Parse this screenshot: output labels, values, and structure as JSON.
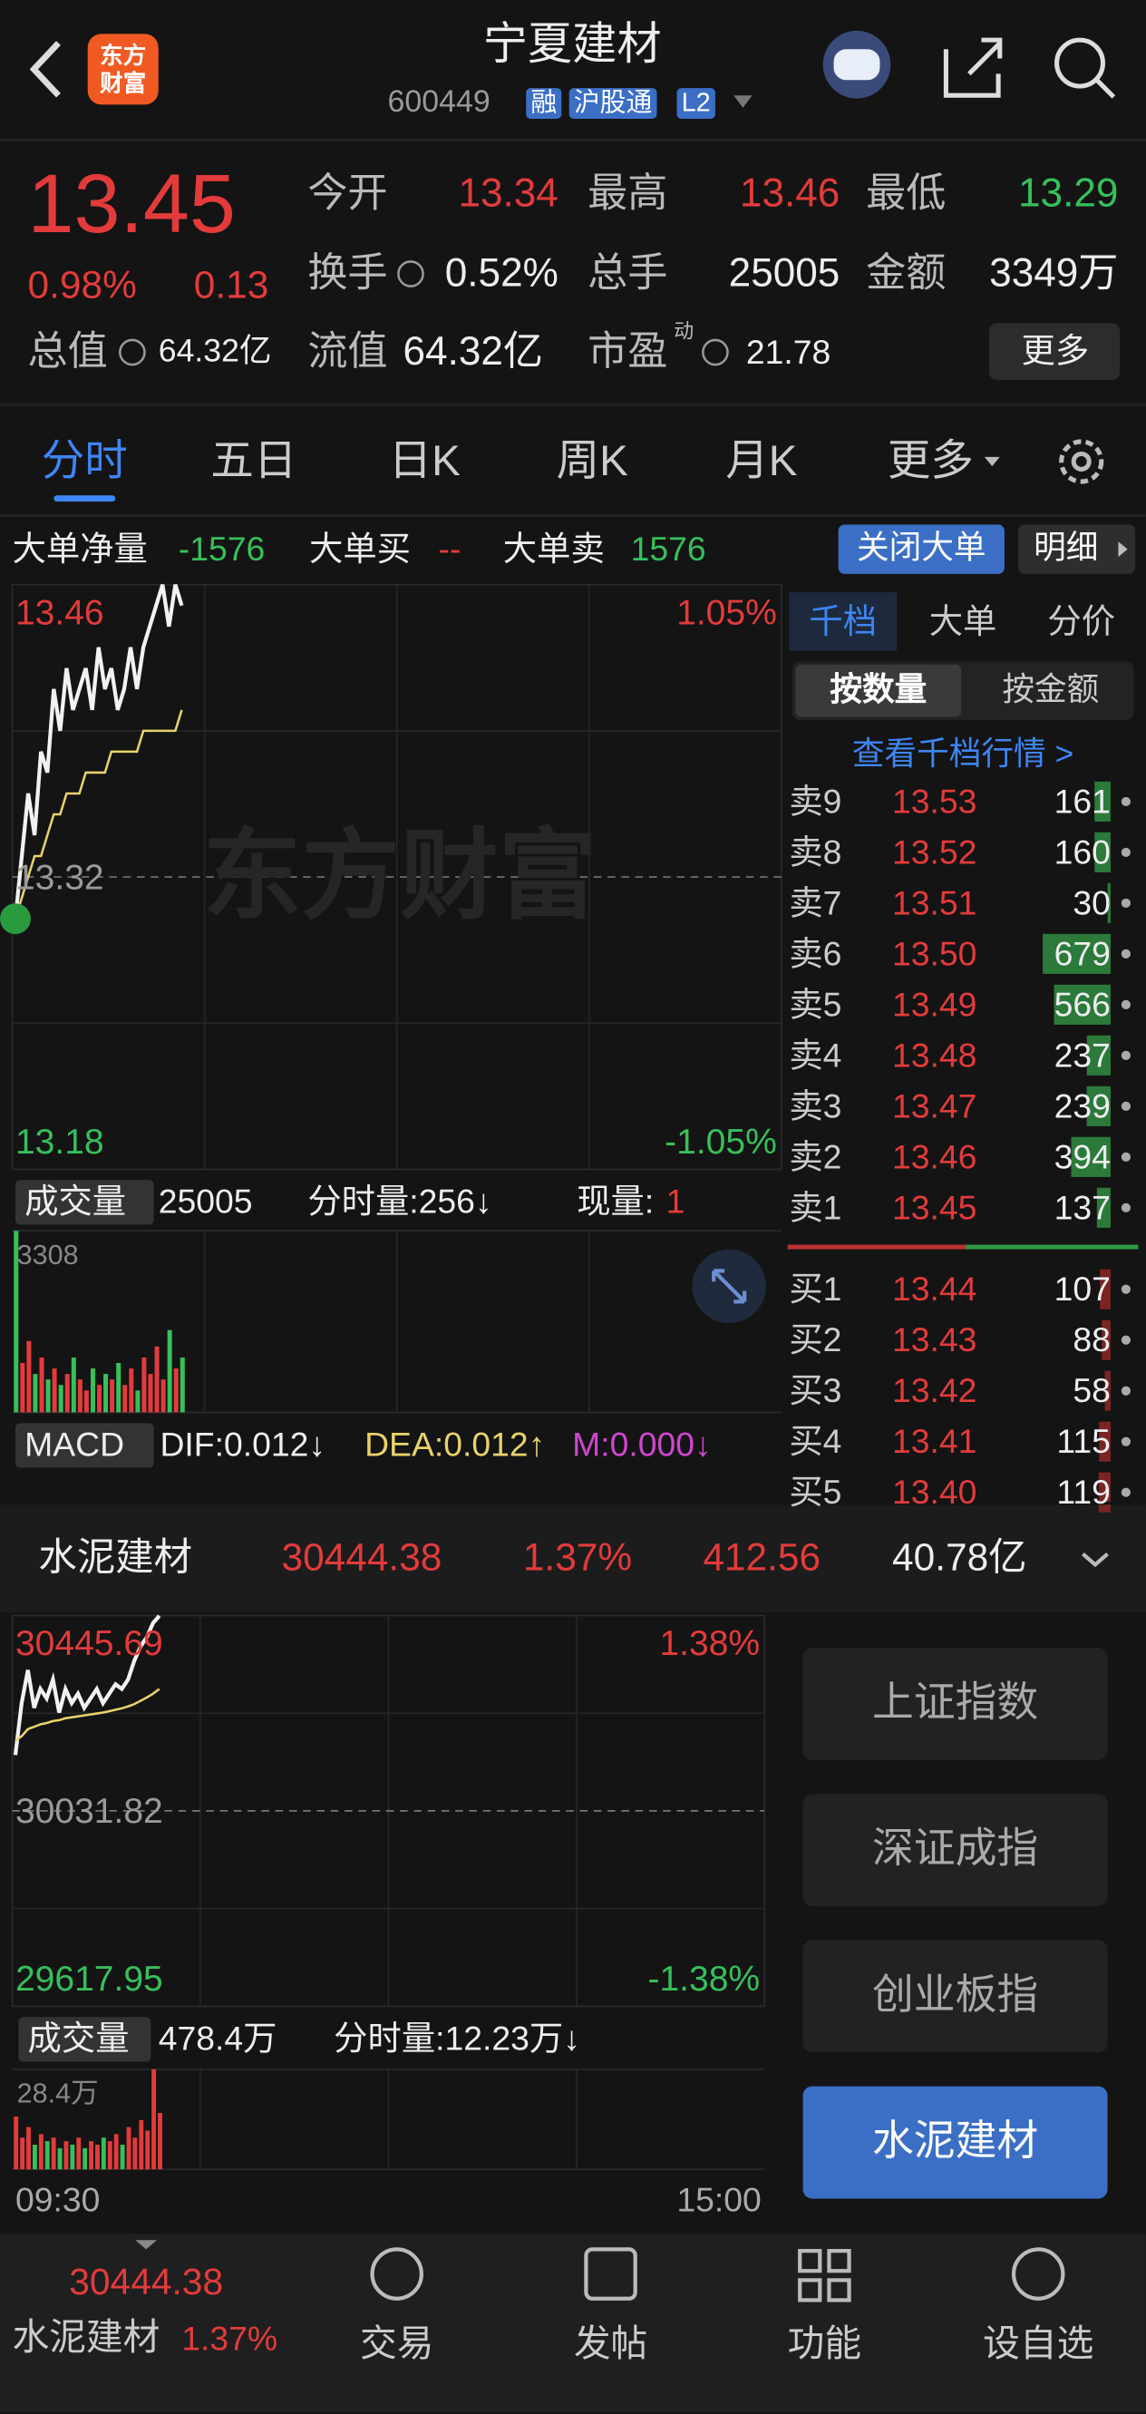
{
  "header": {
    "logo": [
      "东方",
      "财富"
    ],
    "title": "宁夏建材",
    "code": "600449",
    "tags": [
      "融",
      "沪股通",
      "L2"
    ]
  },
  "quote": {
    "price": "13.45",
    "change_pct": "0.98%",
    "change": "0.13",
    "fields": [
      {
        "label": "今开",
        "value": "13.34"
      },
      {
        "label": "最高",
        "value": "13.46"
      },
      {
        "label": "最低",
        "value": "13.29"
      },
      {
        "label": "换手",
        "value": "0.52%"
      },
      {
        "label": "总手",
        "value": "25005"
      },
      {
        "label": "金额",
        "value": "3349万"
      },
      {
        "label": "总值",
        "value": "64.32亿"
      },
      {
        "label": "流值",
        "value": "64.32亿"
      },
      {
        "label": "市盈",
        "sup": "动",
        "value": "21.78"
      }
    ],
    "more": "更多"
  },
  "tabs": [
    "分时",
    "五日",
    "日K",
    "周K",
    "月K",
    "更多"
  ],
  "big_order": {
    "net_label": "大单净量",
    "net": "-1576",
    "buy_label": "大单买",
    "buy": "--",
    "sell_label": "大单卖",
    "sell": "1576",
    "close": "关闭大单",
    "detail": "明细"
  },
  "watermark": "东方财富",
  "chart_data": [
    {
      "type": "line",
      "ylim": [
        13.18,
        13.46
      ],
      "yticks": [
        13.46,
        13.32,
        13.18
      ],
      "y2lim": [
        -1.05,
        1.05
      ],
      "y2ticks": [
        {
          "value": 1.05,
          "label": "1.05%"
        },
        {
          "value": -1.05,
          "label": "-1.05%"
        }
      ],
      "grid": true,
      "series": [
        {
          "color": "#f2f2f2",
          "values": [
            13.3,
            13.33,
            13.36,
            13.34,
            13.38,
            13.37,
            13.41,
            13.39,
            13.42,
            13.4,
            13.41,
            13.42,
            13.4,
            13.43,
            13.41,
            13.42,
            13.4,
            13.41,
            13.43,
            13.41,
            13.43,
            13.44,
            13.45,
            13.46,
            13.44,
            13.46,
            13.45
          ]
        },
        {
          "color": "#e8d36a",
          "values": [
            13.3,
            13.31,
            13.32,
            13.33,
            13.33,
            13.34,
            13.35,
            13.35,
            13.36,
            13.36,
            13.36,
            13.37,
            13.37,
            13.37,
            13.37,
            13.38,
            13.38,
            13.38,
            13.38,
            13.38,
            13.39,
            13.39,
            13.39,
            13.39,
            13.39,
            13.39,
            13.4
          ]
        }
      ]
    },
    {
      "type": "bar",
      "title": "成交量",
      "total": "25005",
      "interval_volume": "分时量:256↓",
      "current_label": "现量:",
      "current": "1",
      "ylim": [
        0,
        3308
      ],
      "yticks": [
        3308
      ],
      "values": [
        3308,
        900,
        1300,
        700,
        1000,
        600,
        800,
        500,
        700,
        1000,
        600,
        400,
        800,
        500,
        700,
        600,
        900,
        500,
        800,
        400,
        1000,
        700,
        1200,
        600,
        1500,
        800,
        1000
      ]
    },
    {
      "type": "line",
      "ylim": [
        29617.95,
        30445.69
      ],
      "yticks": [
        30445.69,
        30031.82,
        29617.95
      ],
      "y2lim": [
        -1.38,
        1.38
      ],
      "y2ticks": [
        {
          "value": 1.38,
          "label": "1.38%"
        },
        {
          "value": -1.38,
          "label": "-1.38%"
        }
      ],
      "grid": true,
      "series": [
        {
          "color": "#f2f2f2",
          "values": [
            30150,
            30260,
            30330,
            30250,
            30290,
            30270,
            30310,
            30240,
            30290,
            30260,
            30280,
            30250,
            30270,
            30290,
            30260,
            30280,
            30300,
            30290,
            30310,
            30350,
            30380,
            30400,
            30430,
            30445
          ]
        },
        {
          "color": "#e8d36a",
          "values": [
            30180,
            30190,
            30205,
            30210,
            30215,
            30218,
            30222,
            30224,
            30228,
            30230,
            30232,
            30234,
            30236,
            30238,
            30240,
            30243,
            30246,
            30249,
            30253,
            30258,
            30265,
            30272,
            30280,
            30290
          ]
        }
      ]
    },
    {
      "type": "bar",
      "title": "成交量",
      "total": "478.4万",
      "interval_volume": "分时量:12.23万↓",
      "ylim": [
        0,
        284000
      ],
      "yticks": [
        {
          "value": 284000,
          "label": "28.4万"
        }
      ],
      "x_labels": [
        "09:30",
        "15:00"
      ],
      "values": [
        150000,
        90000,
        120000,
        70000,
        100000,
        80000,
        90000,
        60000,
        80000,
        70000,
        90000,
        60000,
        80000,
        70000,
        90000,
        80000,
        100000,
        70000,
        120000,
        90000,
        140000,
        110000,
        284000,
        160000
      ]
    }
  ],
  "macd": {
    "title": "MACD",
    "dif": "DIF:0.012↓",
    "dea": "DEA:0.012↑",
    "m": "M:0.000↓"
  },
  "order_book": {
    "tabs": [
      "千档",
      "大单",
      "分价"
    ],
    "modes": [
      "按数量",
      "按金额"
    ],
    "link": "查看千档行情 >",
    "asks": [
      {
        "label": "卖9",
        "price": "13.53",
        "volume": 161
      },
      {
        "label": "卖8",
        "price": "13.52",
        "volume": 160
      },
      {
        "label": "卖7",
        "price": "13.51",
        "volume": 30
      },
      {
        "label": "卖6",
        "price": "13.50",
        "volume": 679
      },
      {
        "label": "卖5",
        "price": "13.49",
        "volume": 566
      },
      {
        "label": "卖4",
        "price": "13.48",
        "volume": 237
      },
      {
        "label": "卖3",
        "price": "13.47",
        "volume": 239
      },
      {
        "label": "卖2",
        "price": "13.46",
        "volume": 394
      },
      {
        "label": "卖1",
        "price": "13.45",
        "volume": 137
      }
    ],
    "bids": [
      {
        "label": "买1",
        "price": "13.44",
        "volume": 107
      },
      {
        "label": "买2",
        "price": "13.43",
        "volume": 88
      },
      {
        "label": "买3",
        "price": "13.42",
        "volume": 58
      },
      {
        "label": "买4",
        "price": "13.41",
        "volume": 115
      },
      {
        "label": "买5",
        "price": "13.40",
        "volume": 119
      }
    ]
  },
  "index_strip": {
    "name": "水泥建材",
    "value": "30444.38",
    "pct": "1.37%",
    "change": "412.56",
    "amount": "40.78亿"
  },
  "index_buttons": [
    "上证指数",
    "深证成指",
    "创业板指",
    "水泥建材"
  ],
  "bottom_nav": {
    "index_value": "30444.38",
    "index_name": "水泥建材",
    "index_pct": "1.37%",
    "items": [
      "交易",
      "发帖",
      "功能",
      "设自选"
    ]
  }
}
